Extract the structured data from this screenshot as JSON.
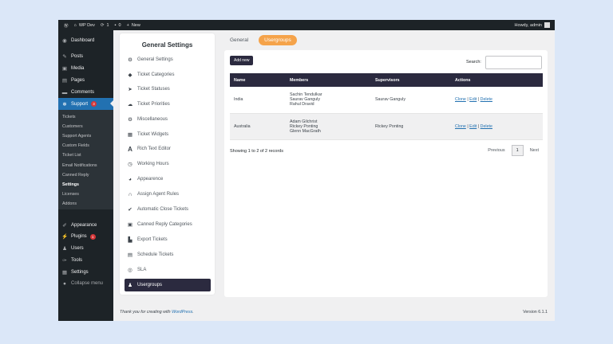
{
  "adminbar": {
    "site": "WP Dev",
    "updates": "1",
    "comments": "0",
    "new": "New",
    "howdy": "Howdy, admin"
  },
  "sidebar": {
    "top": [
      {
        "label": "Dashboard",
        "icon": "dashboard-icon"
      },
      {
        "label": "Posts",
        "icon": "pin-icon"
      },
      {
        "label": "Media",
        "icon": "media-icon"
      },
      {
        "label": "Pages",
        "icon": "pages-icon"
      },
      {
        "label": "Comments",
        "icon": "comments-icon"
      }
    ],
    "support": {
      "label": "Support",
      "badge": "3"
    },
    "submenu": [
      "Tickets",
      "Customers",
      "Support Agents",
      "Custom Fields",
      "Ticket List",
      "Email Notifications",
      "Canned Reply",
      "Settings",
      "Licenses",
      "Addons"
    ],
    "bottom": [
      {
        "label": "Appearance",
        "icon": "brush-icon"
      },
      {
        "label": "Plugins",
        "icon": "plugin-icon",
        "badge": "1"
      },
      {
        "label": "Users",
        "icon": "users-icon"
      },
      {
        "label": "Tools",
        "icon": "wrench-icon"
      },
      {
        "label": "Settings",
        "icon": "settings-icon"
      },
      {
        "label": "Collapse menu",
        "icon": "collapse-icon"
      }
    ]
  },
  "settings_panel": {
    "title": "General Settings",
    "items": [
      "General Settings",
      "Ticket Categories",
      "Ticket Statuses",
      "Ticket Priorities",
      "Miscellaneous",
      "Ticket Widgets",
      "Rich Text Editor",
      "Working Hours",
      "Appearence",
      "Assign Agent Rules",
      "Automatic Close Tickets",
      "Canned Reply Categories",
      "Export Tickets",
      "Schedule Tickets",
      "SLA",
      "Usergroups"
    ]
  },
  "tabs": [
    "General",
    "Usergroups"
  ],
  "card": {
    "add_new": "Add new",
    "search_label": "Search:",
    "search_value": "",
    "columns": [
      "Name",
      "Members",
      "Supervisors",
      "Actions"
    ],
    "rows": [
      {
        "name": "India",
        "members": [
          "Sachin Tendulkar",
          "Saurav Ganguly",
          "Rahul Dravid"
        ],
        "supervisors": "Saurav Ganguly",
        "actions": [
          "Clone",
          "Edit",
          "Delete"
        ]
      },
      {
        "name": "Australia",
        "members": [
          "Adam Gilchrist",
          "Rickey Ponting",
          "Glenn MacGrath"
        ],
        "supervisors": "Rickey Ponting",
        "actions": [
          "Clone",
          "Edit",
          "Delete"
        ]
      }
    ],
    "info": "Showing 1 to 2 of 2 records",
    "prev": "Previous",
    "page": "1",
    "next": "Next"
  },
  "footer": {
    "text": "Thank you for creating with ",
    "link": "WordPress",
    "end": ".",
    "version": "Version 6.1.1"
  },
  "colors": {
    "accent": "#f5a34a",
    "dark": "#2b2a3f",
    "wp_blue": "#2271b1"
  }
}
